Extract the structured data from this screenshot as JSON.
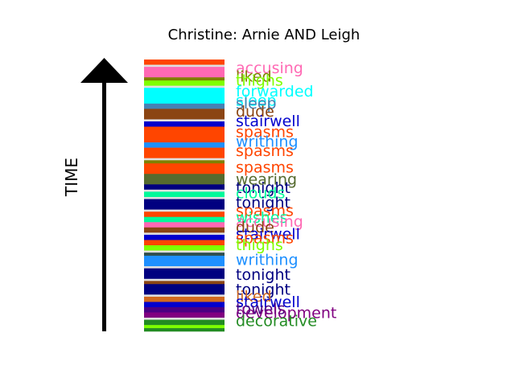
{
  "chart_data": {
    "type": "bar",
    "title": "Christine: Arnie AND Leigh",
    "ylabel": "TIME",
    "xlabel": "",
    "stripes": [
      {
        "color": "#ff4500",
        "weight": 1
      },
      {
        "color": "#e0e0e0",
        "weight": 0.4
      },
      {
        "color": "#ff69b4",
        "weight": 2
      },
      {
        "color": "#808000",
        "weight": 0.6
      },
      {
        "color": "#7fff00",
        "weight": 1
      },
      {
        "color": "#e0e0e0",
        "weight": 0.4
      },
      {
        "color": "#00ffff",
        "weight": 3
      },
      {
        "color": "#4682b4",
        "weight": 1
      },
      {
        "color": "#8b4513",
        "weight": 2
      },
      {
        "color": "#e0e0e0",
        "weight": 0.4
      },
      {
        "color": "#0000cd",
        "weight": 1
      },
      {
        "color": "#ff4500",
        "weight": 3
      },
      {
        "color": "#1e90ff",
        "weight": 1
      },
      {
        "color": "#ff4500",
        "weight": 2
      },
      {
        "color": "#e0e0e0",
        "weight": 0.4
      },
      {
        "color": "#808000",
        "weight": 0.6
      },
      {
        "color": "#ff4500",
        "weight": 2
      },
      {
        "color": "#556b2f",
        "weight": 2
      },
      {
        "color": "#000080",
        "weight": 1
      },
      {
        "color": "#e0e0e0",
        "weight": 0.4
      },
      {
        "color": "#00fa9a",
        "weight": 1
      },
      {
        "color": "#e0e0e0",
        "weight": 0.4
      },
      {
        "color": "#000080",
        "weight": 2
      },
      {
        "color": "#e0e0e0",
        "weight": 0.4
      },
      {
        "color": "#ff4500",
        "weight": 1
      },
      {
        "color": "#00fa9a",
        "weight": 1
      },
      {
        "color": "#ff69b4",
        "weight": 1
      },
      {
        "color": "#8b4513",
        "weight": 1
      },
      {
        "color": "#e0e0e0",
        "weight": 0.4
      },
      {
        "color": "#0000cd",
        "weight": 1
      },
      {
        "color": "#ff4500",
        "weight": 1
      },
      {
        "color": "#7fff00",
        "weight": 1
      },
      {
        "color": "#e0e0e0",
        "weight": 0.4
      },
      {
        "color": "#2f4f4f",
        "weight": 0.6
      },
      {
        "color": "#1e90ff",
        "weight": 2
      },
      {
        "color": "#e0e0e0",
        "weight": 0.4
      },
      {
        "color": "#000080",
        "weight": 2
      },
      {
        "color": "#e0e0e0",
        "weight": 0.4
      },
      {
        "color": "#8b4513",
        "weight": 0.6
      },
      {
        "color": "#000080",
        "weight": 2
      },
      {
        "color": "#e0e0e0",
        "weight": 0.4
      },
      {
        "color": "#d2691e",
        "weight": 1
      },
      {
        "color": "#0000cd",
        "weight": 1
      },
      {
        "color": "#4b0082",
        "weight": 1
      },
      {
        "color": "#800080",
        "weight": 1
      },
      {
        "color": "#e0e0e0",
        "weight": 0.4
      },
      {
        "color": "#228b22",
        "weight": 1
      },
      {
        "color": "#7fff00",
        "weight": 0.6
      },
      {
        "color": "#228b22",
        "weight": 0.6
      }
    ],
    "words": [
      {
        "text": "accusing",
        "color": "#ff69b4",
        "position": 0.97
      },
      {
        "text": "liked",
        "color": "#808000",
        "position": 0.94
      },
      {
        "text": "thighs",
        "color": "#7fff00",
        "position": 0.925
      },
      {
        "text": "forwarded",
        "color": "#00ffff",
        "position": 0.885
      },
      {
        "text": "sleep",
        "color": "#00ffff",
        "position": 0.85
      },
      {
        "text": "sleep",
        "color": "#4682b4",
        "position": 0.84
      },
      {
        "text": "dude",
        "color": "#8b4513",
        "position": 0.81
      },
      {
        "text": "stairwell",
        "color": "#0000cd",
        "position": 0.775
      },
      {
        "text": "spasms",
        "color": "#ff4500",
        "position": 0.735
      },
      {
        "text": "writhing",
        "color": "#1e90ff",
        "position": 0.7
      },
      {
        "text": "spasms",
        "color": "#ff4500",
        "position": 0.665
      },
      {
        "text": "spasms",
        "color": "#ff4500",
        "position": 0.605
      },
      {
        "text": "wearing",
        "color": "#556b2f",
        "position": 0.56
      },
      {
        "text": "tonight",
        "color": "#000080",
        "position": 0.53
      },
      {
        "text": "clouds",
        "color": "#00fa9a",
        "position": 0.51
      },
      {
        "text": "tonight",
        "color": "#000080",
        "position": 0.475
      },
      {
        "text": "spasms",
        "color": "#ff4500",
        "position": 0.445
      },
      {
        "text": "wishes",
        "color": "#00fa9a",
        "position": 0.42
      },
      {
        "text": "accusing",
        "color": "#ff69b4",
        "position": 0.405
      },
      {
        "text": "dude",
        "color": "#8b4513",
        "position": 0.385
      },
      {
        "text": "stairwell",
        "color": "#0000cd",
        "position": 0.36
      },
      {
        "text": "spasms",
        "color": "#ff4500",
        "position": 0.345
      },
      {
        "text": "thighs",
        "color": "#7fff00",
        "position": 0.32
      },
      {
        "text": "writhing",
        "color": "#1e90ff",
        "position": 0.265
      },
      {
        "text": "tonight",
        "color": "#000080",
        "position": 0.21
      },
      {
        "text": "tonight",
        "color": "#000080",
        "position": 0.155
      },
      {
        "text": "liked",
        "color": "#d2691e",
        "position": 0.13
      },
      {
        "text": "stairwell",
        "color": "#0000cd",
        "position": 0.11
      },
      {
        "text": "towels",
        "color": "#4b0082",
        "position": 0.085
      },
      {
        "text": "development",
        "color": "#800080",
        "position": 0.07
      },
      {
        "text": "decorative",
        "color": "#228b22",
        "position": 0.04
      }
    ]
  }
}
